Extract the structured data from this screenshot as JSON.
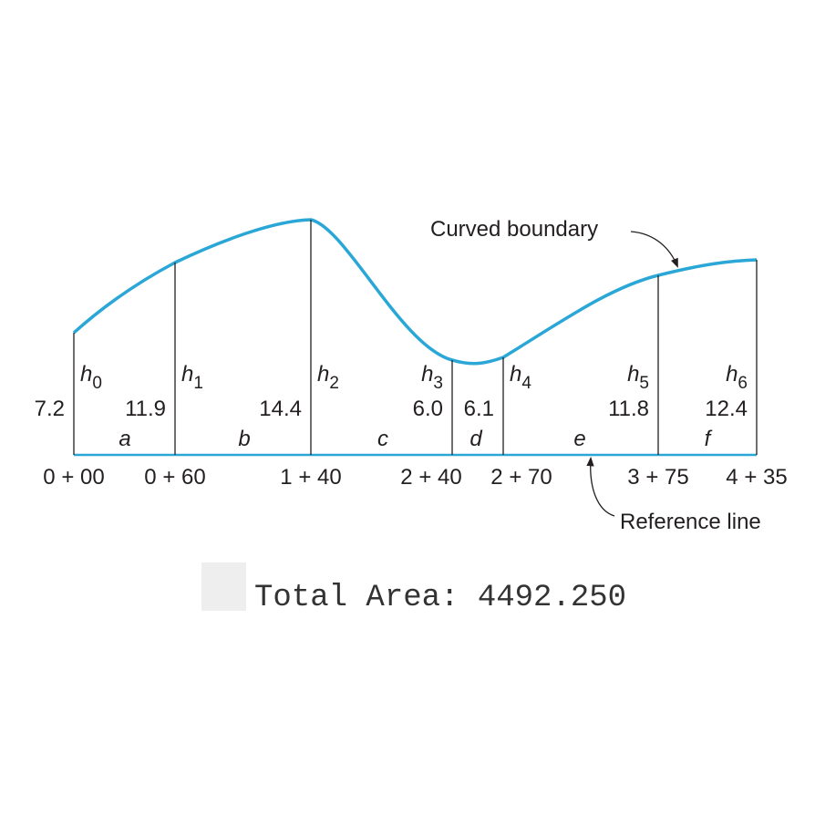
{
  "ordinates": [
    {
      "symbol": "h",
      "sub": "0",
      "height": "7.2",
      "station": "0 + 00"
    },
    {
      "symbol": "h",
      "sub": "1",
      "height": "11.9",
      "station": "0 + 60"
    },
    {
      "symbol": "h",
      "sub": "2",
      "height": "14.4",
      "station": "1 + 40"
    },
    {
      "symbol": "h",
      "sub": "3",
      "height": "6.0",
      "station": "2 + 40"
    },
    {
      "symbol": "h",
      "sub": "4",
      "height": "6.1",
      "station": "2 + 70"
    },
    {
      "symbol": "h",
      "sub": "5",
      "height": "11.8",
      "station": "3 + 75"
    },
    {
      "symbol": "h",
      "sub": "6",
      "height": "12.4",
      "station": "4 + 35"
    }
  ],
  "segments": [
    "a",
    "b",
    "c",
    "d",
    "e",
    "f"
  ],
  "annotations": {
    "curve": "Curved boundary",
    "reference": "Reference line"
  },
  "result": "Total Area: 4492.250"
}
